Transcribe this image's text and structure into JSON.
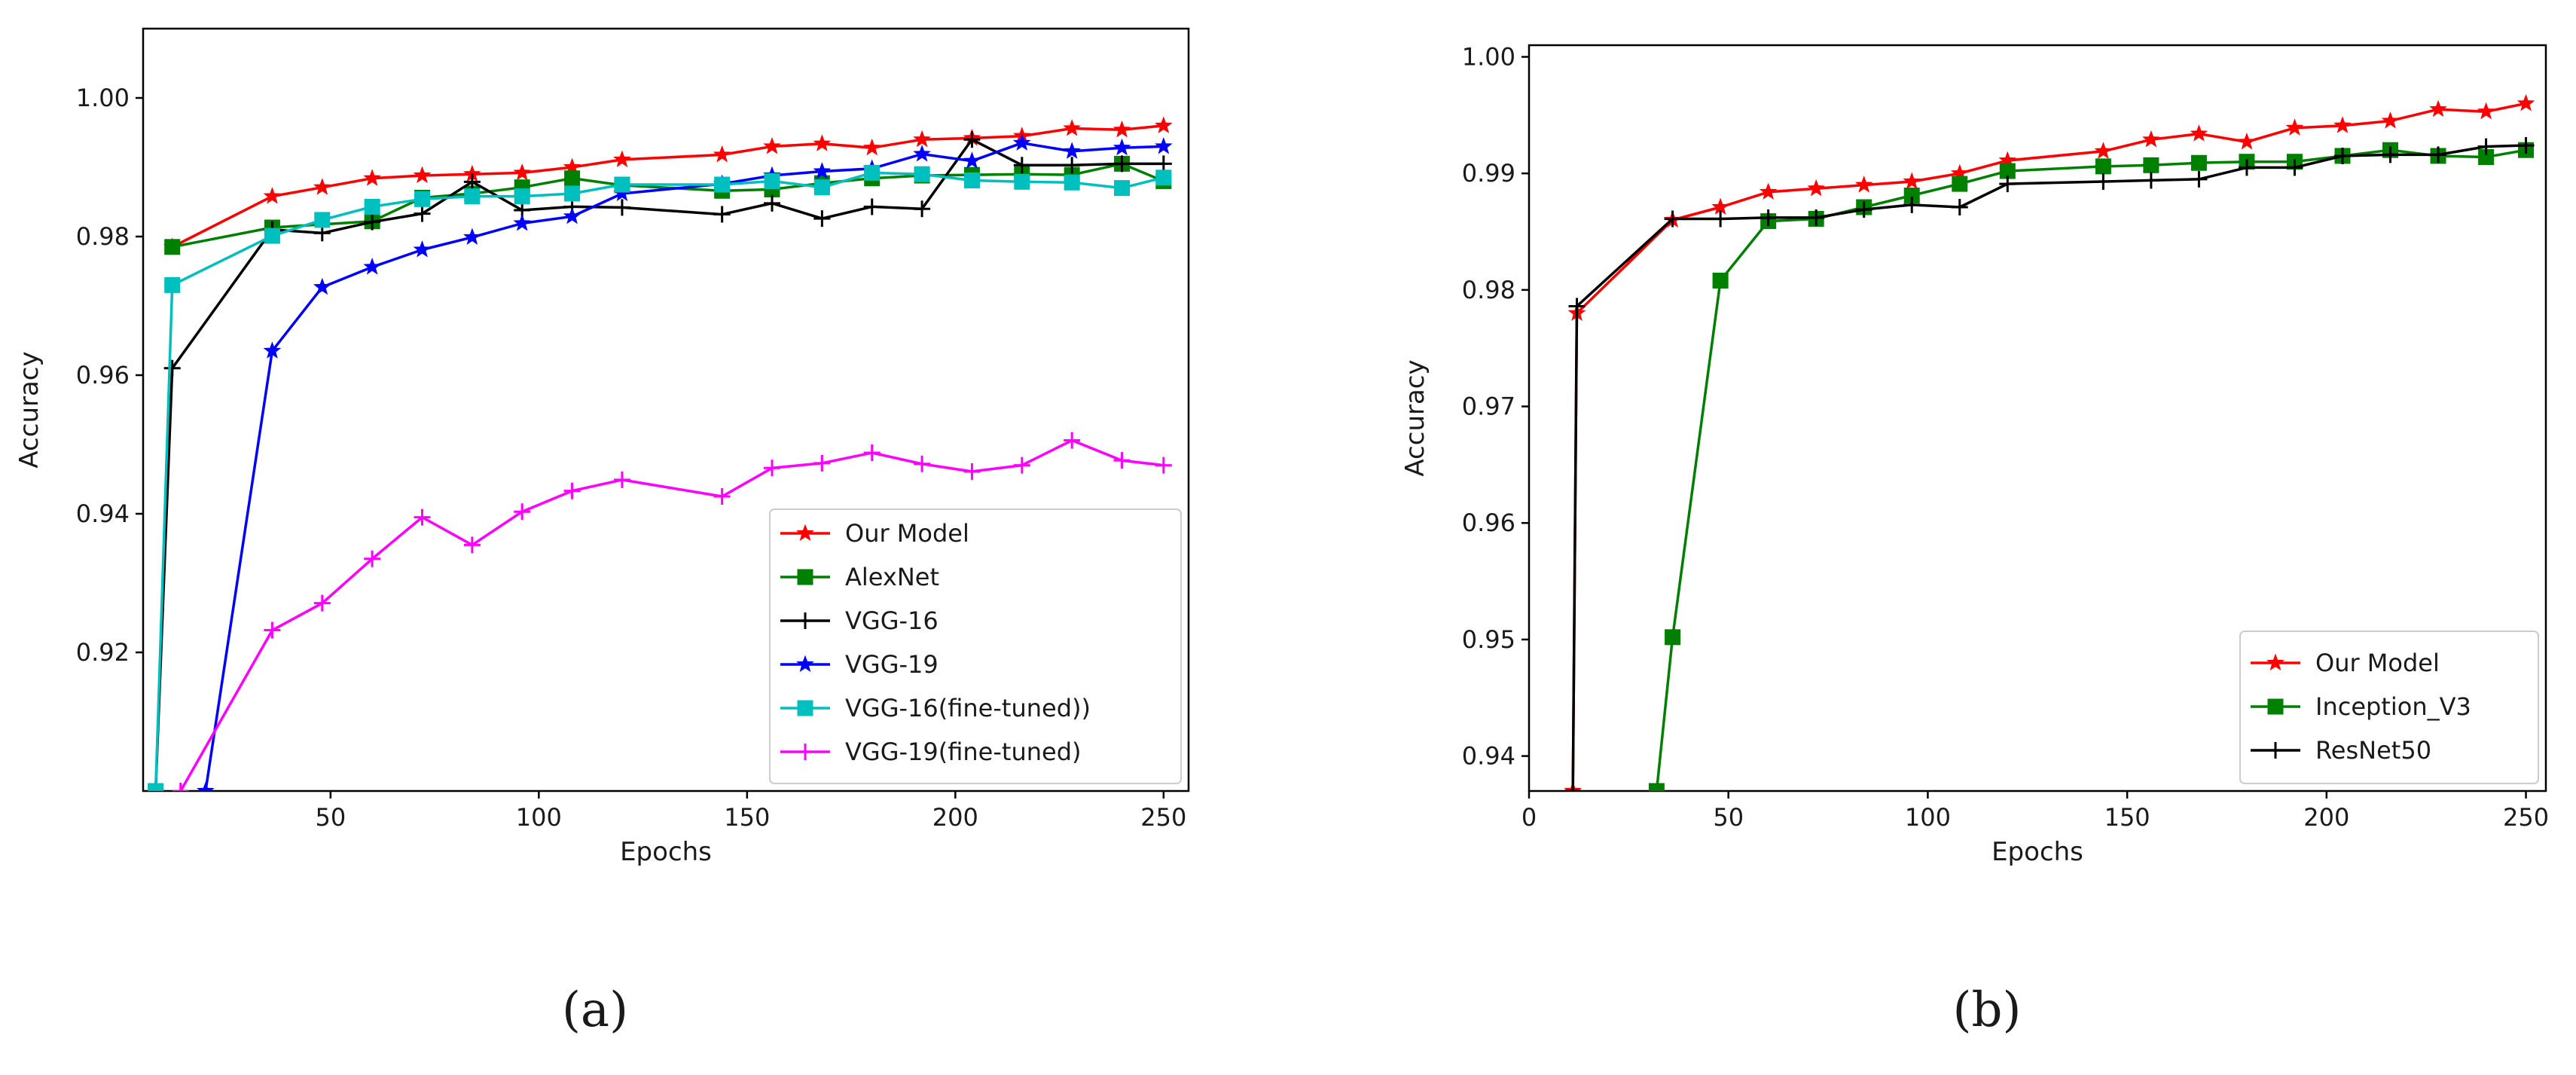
{
  "chart_data": [
    {
      "type": "line",
      "panel_label": "(a)",
      "xlabel": "Epochs",
      "ylabel": "Accuracy",
      "xlim": [
        5,
        256
      ],
      "ylim": [
        0.9,
        1.01
      ],
      "xticks": [
        50,
        100,
        150,
        200,
        250
      ],
      "yticks": [
        0.92,
        0.94,
        0.96,
        0.98,
        1.0
      ],
      "xtick_labels": [
        "50",
        "100",
        "150",
        "200",
        "250"
      ],
      "ytick_labels": [
        "0.92",
        "0.94",
        "0.96",
        "0.98",
        "1.00"
      ],
      "legend_position": "lower-right",
      "series": [
        {
          "name": "Our Model",
          "color": "#ff0000",
          "marker": "star",
          "x": [
            12,
            36,
            48,
            60,
            72,
            84,
            96,
            108,
            120,
            144,
            156,
            168,
            180,
            192,
            204,
            216,
            228,
            240,
            250
          ],
          "y": [
            0.9785,
            0.9858,
            0.9871,
            0.9884,
            0.9888,
            0.989,
            0.9892,
            0.99,
            0.9911,
            0.9918,
            0.993,
            0.9934,
            0.9928,
            0.994,
            0.9942,
            0.9945,
            0.9956,
            0.9954,
            0.996
          ]
        },
        {
          "name": "AlexNet",
          "color": "#008000",
          "marker": "square",
          "x": [
            12,
            36,
            60,
            72,
            84,
            96,
            108,
            120,
            144,
            156,
            168,
            180,
            192,
            204,
            216,
            228,
            240,
            250
          ],
          "y": [
            0.9785,
            0.9813,
            0.9822,
            0.9856,
            0.9862,
            0.9871,
            0.9884,
            0.9874,
            0.9866,
            0.9868,
            0.9877,
            0.9884,
            0.9888,
            0.9889,
            0.989,
            0.9889,
            0.9905,
            0.988
          ]
        },
        {
          "name": "VGG-16",
          "color": "#000000",
          "marker": "plus",
          "x": [
            8,
            12,
            36,
            48,
            60,
            72,
            84,
            96,
            108,
            120,
            144,
            156,
            168,
            180,
            192,
            204,
            216,
            228,
            240,
            250
          ],
          "y": [
            0.9,
            0.961,
            0.981,
            0.9805,
            0.9821,
            0.9833,
            0.9879,
            0.9838,
            0.9843,
            0.9842,
            0.9832,
            0.9848,
            0.9826,
            0.9843,
            0.984,
            0.994,
            0.9903,
            0.9903,
            0.9905,
            0.9905
          ]
        },
        {
          "name": "VGG-19",
          "color": "#0000ff",
          "marker": "star",
          "x": [
            20,
            36,
            48,
            60,
            72,
            84,
            96,
            108,
            120,
            144,
            156,
            168,
            180,
            192,
            204,
            216,
            228,
            240,
            250
          ],
          "y": [
            0.9,
            0.9635,
            0.9727,
            0.9756,
            0.9781,
            0.9799,
            0.9819,
            0.9829,
            0.9862,
            0.9876,
            0.9888,
            0.9894,
            0.9898,
            0.9919,
            0.9909,
            0.9935,
            0.9923,
            0.9928,
            0.993
          ]
        },
        {
          "name": "VGG-16(fine-tuned))",
          "color": "#00bfbf",
          "marker": "square",
          "x": [
            8,
            12,
            36,
            48,
            60,
            72,
            84,
            96,
            108,
            120,
            144,
            156,
            168,
            180,
            192,
            204,
            216,
            228,
            240,
            250
          ],
          "y": [
            0.9,
            0.973,
            0.9801,
            0.9824,
            0.9843,
            0.9854,
            0.9858,
            0.9858,
            0.9862,
            0.9875,
            0.9875,
            0.988,
            0.9871,
            0.9892,
            0.989,
            0.9881,
            0.9879,
            0.9878,
            0.987,
            0.9885
          ]
        },
        {
          "name": "VGG-19(fine-tuned)",
          "color": "#ff00ff",
          "marker": "plus",
          "x": [
            14,
            36,
            48,
            60,
            72,
            84,
            96,
            108,
            120,
            144,
            156,
            168,
            180,
            192,
            204,
            216,
            228,
            240,
            250
          ],
          "y": [
            0.9,
            0.9232,
            0.9271,
            0.9335,
            0.9395,
            0.9355,
            0.9403,
            0.9433,
            0.9449,
            0.9425,
            0.9466,
            0.9473,
            0.9488,
            0.9472,
            0.9461,
            0.947,
            0.9506,
            0.9477,
            0.947
          ]
        }
      ]
    },
    {
      "type": "line",
      "panel_label": "(b)",
      "xlabel": "Epochs",
      "ylabel": "Accuracy",
      "xlim": [
        0,
        255
      ],
      "ylim": [
        0.937,
        1.001
      ],
      "xticks": [
        0,
        50,
        100,
        150,
        200,
        250
      ],
      "yticks": [
        0.94,
        0.95,
        0.96,
        0.97,
        0.98,
        0.99,
        1.0
      ],
      "xtick_labels": [
        "0",
        "50",
        "100",
        "150",
        "200",
        "250"
      ],
      "ytick_labels": [
        "0.94",
        "0.95",
        "0.96",
        "0.97",
        "0.98",
        "0.99",
        "1.00"
      ],
      "legend_position": "lower-right",
      "series": [
        {
          "name": "Our Model",
          "color": "#ff0000",
          "marker": "star",
          "x": [
            11,
            12,
            36,
            48,
            60,
            72,
            84,
            96,
            108,
            120,
            144,
            156,
            168,
            180,
            192,
            204,
            216,
            228,
            240,
            250
          ],
          "y": [
            0.937,
            0.978,
            0.986,
            0.9871,
            0.9884,
            0.9887,
            0.989,
            0.9893,
            0.99,
            0.9911,
            0.9919,
            0.9929,
            0.9934,
            0.9927,
            0.9939,
            0.9941,
            0.9945,
            0.9955,
            0.9953,
            0.996
          ]
        },
        {
          "name": "Inception_V3",
          "color": "#008000",
          "marker": "square",
          "x": [
            32,
            36,
            48,
            60,
            72,
            84,
            96,
            108,
            120,
            144,
            156,
            168,
            180,
            192,
            204,
            216,
            228,
            240,
            250
          ],
          "y": [
            0.937,
            0.9502,
            0.9808,
            0.9859,
            0.9861,
            0.9871,
            0.9881,
            0.9891,
            0.9902,
            0.9906,
            0.9907,
            0.9909,
            0.991,
            0.991,
            0.9915,
            0.992,
            0.9915,
            0.9914,
            0.992
          ]
        },
        {
          "name": "ResNet50",
          "color": "#000000",
          "marker": "plus",
          "x": [
            11,
            12,
            36,
            48,
            60,
            72,
            84,
            96,
            108,
            120,
            144,
            156,
            168,
            180,
            192,
            204,
            216,
            228,
            240,
            250
          ],
          "y": [
            0.937,
            0.9786,
            0.9861,
            0.9861,
            0.9862,
            0.9862,
            0.9869,
            0.9873,
            0.9871,
            0.9891,
            0.9893,
            0.9894,
            0.9895,
            0.9905,
            0.9905,
            0.9915,
            0.9916,
            0.9916,
            0.9923,
            0.9924
          ]
        }
      ]
    }
  ]
}
